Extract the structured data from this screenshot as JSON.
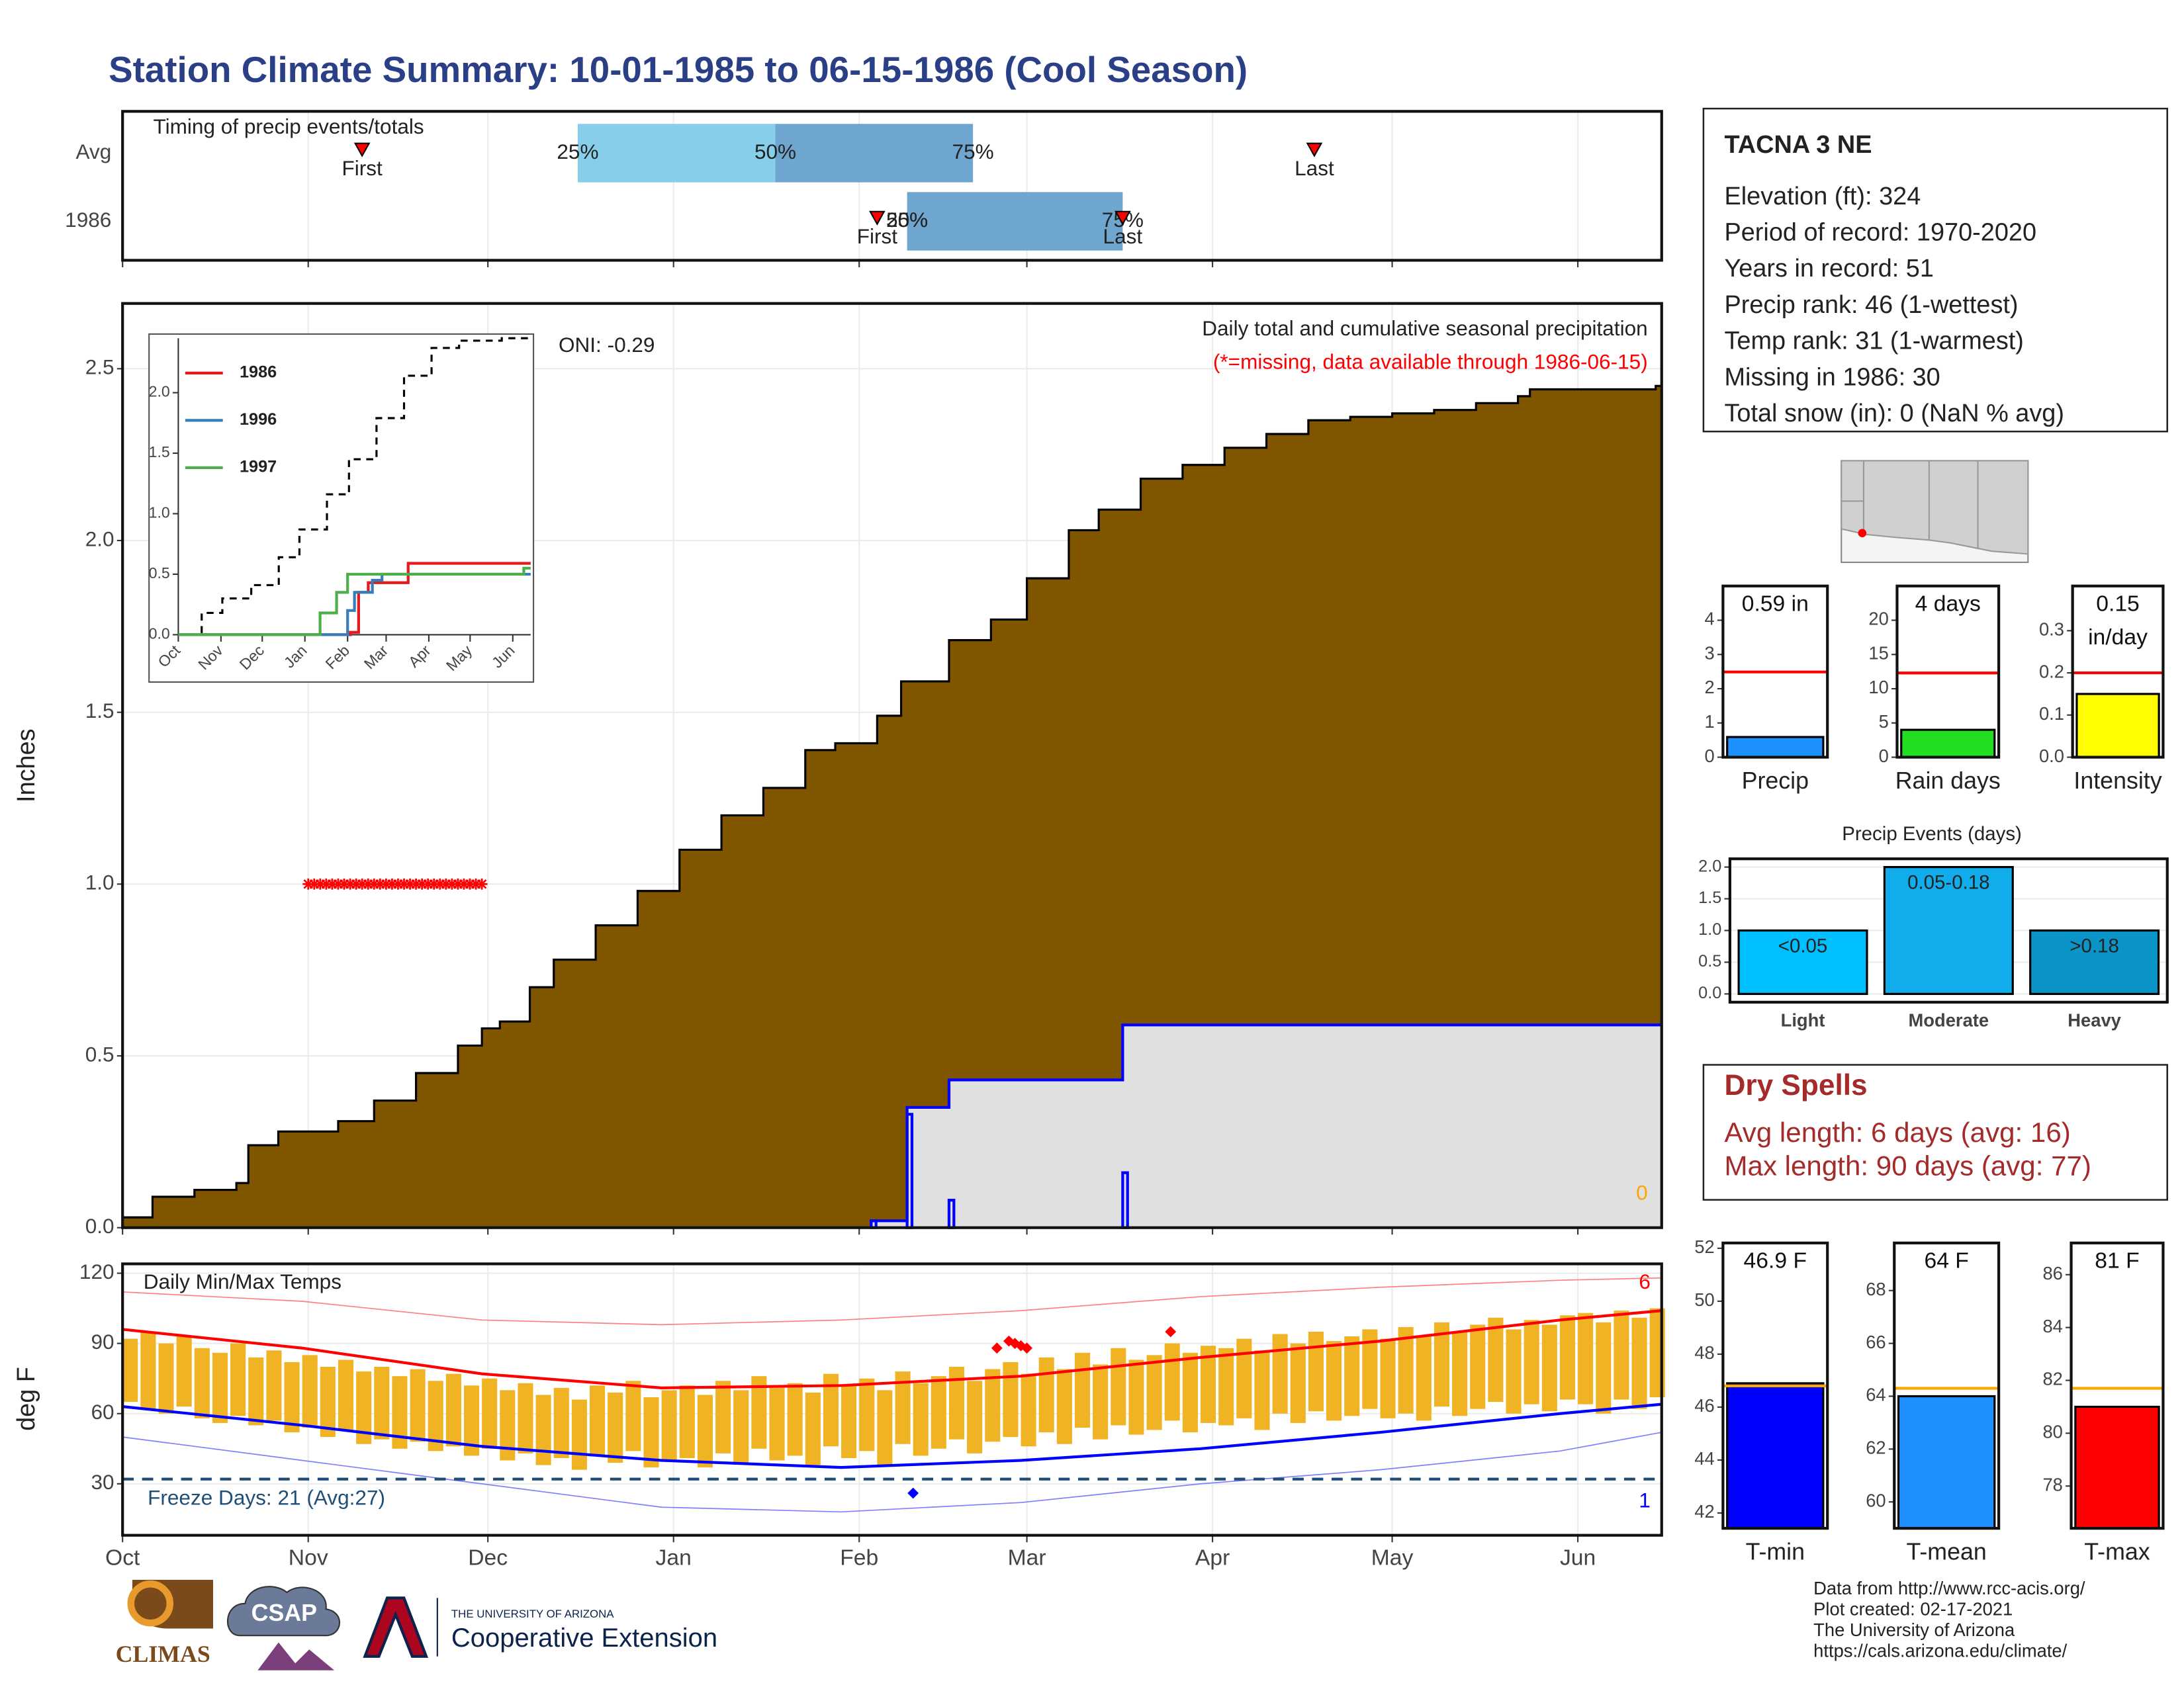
{
  "title": "Station Climate Summary: 10-01-1985 to 06-15-1986 (Cool Season)",
  "station": {
    "name": "TACNA 3 NE",
    "lines": [
      "Elevation (ft): 324",
      "Period of record: 1970-2020",
      "Years in record: 51",
      "Precip rank: 46 (1-wettest)",
      "Temp rank: 31 (1-warmest)",
      "Missing in 1986: 30",
      "Total snow (in): 0 (NaN % avg)"
    ]
  },
  "dry_spells": {
    "title": "Dry Spells",
    "lines": [
      "Avg length: 6 days (avg: 16)",
      "Max length: 90 days (avg: 77)"
    ]
  },
  "footer": [
    "Data from http://www.rcc-acis.org/",
    "Plot created: 02-17-2021",
    "The University of Arizona",
    "https://cals.arizona.edu/climate/"
  ],
  "logos": [
    "CLIMAS",
    "CSAP",
    "THE UNIVERSITY OF ARIZONA",
    "Cooperative Extension"
  ],
  "chart_data": [
    {
      "type": "timing",
      "title": "Timing of precip events/totals",
      "categories": [
        "Avg",
        "1986"
      ],
      "q25": [
        76,
        131
      ],
      "q50": [
        109,
        131
      ],
      "q75": [
        142,
        167
      ],
      "q_labels": [
        "25%",
        "50%",
        "75%"
      ],
      "first": [
        40,
        126
      ],
      "last": [
        199,
        167
      ],
      "first_label": "First",
      "last_label": "Last",
      "colors": [
        "#87ceeb",
        "#6fa6cf"
      ],
      "marker_color": "#ff0000",
      "xlim": [
        0,
        257
      ],
      "xticks": [
        0,
        31,
        61,
        92,
        123,
        151,
        182,
        212,
        243
      ]
    },
    {
      "type": "precip",
      "title": "Daily total and cumulative seasonal precipitation",
      "subtitle": "(*=missing, data available through 1986-06-15)",
      "ylabel": "Inches",
      "annotation": "ONI: -0.29",
      "corner_value": 0,
      "grid": true,
      "xlim": [
        0,
        257
      ],
      "xticks": [
        0,
        31,
        61,
        92,
        123,
        151,
        182,
        212,
        243
      ],
      "ylim": [
        0,
        2.69
      ],
      "yticks": [
        {
          "value": 0,
          "label": "0.0"
        },
        0.5,
        {
          "value": 1,
          "label": "1.0"
        },
        1.5,
        {
          "value": 2,
          "label": "2.0"
        },
        2.5
      ],
      "cumulative_avg": {
        "color": "#7f5500",
        "x": [
          0,
          5,
          12,
          19,
          21,
          26,
          36,
          42,
          49,
          56,
          60,
          63,
          68,
          72,
          79,
          86,
          93,
          100,
          107,
          114,
          119,
          126,
          130,
          138,
          145,
          151,
          158,
          163,
          170,
          177,
          184,
          191,
          198,
          205,
          212,
          219,
          226,
          233,
          235,
          256
        ],
        "values": [
          0.03,
          0.09,
          0.11,
          0.13,
          0.24,
          0.28,
          0.31,
          0.37,
          0.45,
          0.53,
          0.58,
          0.6,
          0.7,
          0.78,
          0.88,
          0.98,
          1.1,
          1.2,
          1.28,
          1.39,
          1.41,
          1.49,
          1.59,
          1.71,
          1.77,
          1.89,
          2.03,
          2.09,
          2.18,
          2.22,
          2.27,
          2.31,
          2.35,
          2.36,
          2.37,
          2.38,
          2.4,
          2.42,
          2.44,
          2.45
        ]
      },
      "cumulative_1986": {
        "color": "#0000ff",
        "fill": "#e0e0e0",
        "x": [
          125,
          131,
          138,
          167
        ],
        "values": [
          0.02,
          0.35,
          0.43,
          0.59
        ]
      },
      "daily_1986": {
        "color": "#0000ff",
        "x": [
          125,
          131,
          138,
          167
        ],
        "values": [
          0.02,
          0.33,
          0.08,
          0.16
        ]
      },
      "missing": {
        "color": "#ff0000",
        "y": 1,
        "x": [
          31,
          32,
          33,
          34,
          35,
          36,
          37,
          38,
          39,
          40,
          41,
          42,
          43,
          44,
          45,
          46,
          47,
          48,
          49,
          50,
          51,
          52,
          53,
          54,
          55,
          56,
          57,
          58,
          59,
          60
        ]
      }
    },
    {
      "type": "line",
      "step": true,
      "xlim": [
        0,
        256
      ],
      "xticks": [
        {
          "value": 0,
          "label": "Oct"
        },
        {
          "value": 31,
          "label": "Nov"
        },
        {
          "value": 61,
          "label": "Dec"
        },
        {
          "value": 92,
          "label": "Jan"
        },
        {
          "value": 123,
          "label": "Feb"
        },
        {
          "value": 151,
          "label": "Mar"
        },
        {
          "value": 182,
          "label": "Apr"
        },
        {
          "value": 212,
          "label": "May"
        },
        {
          "value": 243,
          "label": "Jun"
        }
      ],
      "ylim": [
        0,
        2.45
      ],
      "yticks": [
        {
          "value": 0,
          "label": "0.0"
        },
        0.5,
        {
          "value": 1,
          "label": "1.0"
        },
        1.5,
        {
          "value": 2,
          "label": "2.0"
        }
      ],
      "series": [
        {
          "color": "#000000",
          "dashed": true,
          "x": [
            0,
            17,
            32,
            53,
            73,
            88,
            108,
            124,
            144,
            164,
            184,
            204,
            235,
            255
          ],
          "values": [
            0,
            0.18,
            0.3,
            0.41,
            0.64,
            0.87,
            1.16,
            1.45,
            1.79,
            2.14,
            2.37,
            2.43,
            2.45,
            2.45
          ]
        },
        {
          "name": "1986",
          "color": "#e41a1c",
          "x": [
            0,
            125,
            131,
            138,
            167,
            256
          ],
          "values": [
            0,
            0.02,
            0.35,
            0.43,
            0.59,
            0.59
          ]
        },
        {
          "name": "1996",
          "color": "#377eb8",
          "x": [
            0,
            123,
            128,
            141,
            148,
            256
          ],
          "values": [
            0,
            0.2,
            0.35,
            0.45,
            0.5,
            0.5
          ]
        },
        {
          "name": "1997",
          "color": "#4daf4a",
          "x": [
            0,
            103,
            115,
            123,
            251,
            256
          ],
          "values": [
            0,
            0.18,
            0.35,
            0.5,
            0.55,
            0.55
          ]
        }
      ]
    },
    {
      "type": "temps",
      "title": "Daily Min/Max Temps",
      "ylabel": "deg F",
      "grid": true,
      "freeze": 32,
      "freeze_label": "Freeze Days: 21 (Avg:27)",
      "record_high_count": 6,
      "record_low_count": 1,
      "xlim": [
        0,
        257
      ],
      "xticks": [
        {
          "value": 0,
          "label": "Oct"
        },
        {
          "value": 31,
          "label": "Nov"
        },
        {
          "value": 61,
          "label": "Dec"
        },
        {
          "value": 92,
          "label": "Jan"
        },
        {
          "value": 123,
          "label": "Feb"
        },
        {
          "value": 151,
          "label": "Mar"
        },
        {
          "value": 182,
          "label": "Apr"
        },
        {
          "value": 212,
          "label": "May"
        },
        {
          "value": 243,
          "label": "Jun"
        }
      ],
      "ylim": [
        8,
        124
      ],
      "yticks": [
        30,
        60,
        90,
        120
      ],
      "bars": {
        "color": "#f0b323",
        "x": [
          0,
          3,
          6,
          9,
          12,
          15,
          18,
          21,
          24,
          27,
          30,
          33,
          36,
          39,
          42,
          45,
          48,
          51,
          54,
          57,
          60,
          63,
          66,
          69,
          72,
          75,
          78,
          81,
          84,
          87,
          90,
          93,
          96,
          99,
          102,
          105,
          108,
          111,
          114,
          117,
          120,
          123,
          126,
          129,
          132,
          135,
          138,
          141,
          144,
          147,
          150,
          153,
          156,
          159,
          162,
          165,
          168,
          171,
          174,
          177,
          180,
          183,
          186,
          189,
          192,
          195,
          198,
          201,
          204,
          207,
          210,
          213,
          216,
          219,
          222,
          225,
          228,
          231,
          234,
          237,
          240,
          243,
          246,
          249,
          252,
          255
        ],
        "min": [
          65,
          62,
          60,
          63,
          58,
          56,
          59,
          55,
          57,
          52,
          54,
          50,
          53,
          47,
          49,
          45,
          48,
          44,
          46,
          42,
          45,
          40,
          43,
          38,
          41,
          36,
          42,
          39,
          44,
          37,
          40,
          41,
          37,
          43,
          39,
          45,
          40,
          42,
          38,
          46,
          41,
          44,
          38,
          47,
          42,
          45,
          49,
          43,
          48,
          50,
          46,
          52,
          47,
          54,
          49,
          55,
          51,
          53,
          57,
          52,
          56,
          55,
          58,
          53,
          60,
          56,
          61,
          57,
          59,
          62,
          58,
          60,
          57,
          63,
          59,
          62,
          65,
          60,
          64,
          61,
          66,
          64,
          60,
          66,
          62,
          67
        ],
        "max": [
          92,
          95,
          90,
          93,
          88,
          86,
          90,
          84,
          87,
          82,
          85,
          80,
          83,
          78,
          80,
          76,
          79,
          74,
          77,
          72,
          75,
          70,
          73,
          68,
          71,
          66,
          72,
          69,
          74,
          67,
          70,
          72,
          68,
          74,
          70,
          76,
          71,
          73,
          69,
          77,
          72,
          75,
          70,
          78,
          73,
          76,
          80,
          74,
          79,
          82,
          77,
          84,
          79,
          86,
          81,
          88,
          83,
          85,
          90,
          86,
          89,
          88,
          92,
          87,
          94,
          90,
          95,
          91,
          93,
          96,
          92,
          97,
          93,
          99,
          95,
          98,
          101,
          96,
          100,
          98,
          102,
          103,
          99,
          104,
          101,
          105
        ]
      },
      "lines": [
        {
          "color": "#ff0000",
          "width": 2,
          "x": [
            0,
            30,
            60,
            90,
            120,
            150,
            180,
            210,
            240,
            257
          ],
          "values": [
            96,
            88,
            77,
            71,
            72,
            76,
            84,
            91,
            100,
            104
          ]
        },
        {
          "color": "#0000ff",
          "width": 2,
          "x": [
            0,
            30,
            60,
            90,
            120,
            150,
            180,
            210,
            240,
            257
          ],
          "values": [
            63,
            55,
            46,
            40,
            37,
            40,
            45,
            52,
            60,
            64
          ]
        },
        {
          "color": "#ff8080",
          "width": 0.8,
          "x": [
            0,
            30,
            60,
            90,
            120,
            150,
            180,
            210,
            240,
            257
          ],
          "values": [
            112,
            108,
            100,
            98,
            100,
            104,
            110,
            114,
            117,
            118
          ]
        },
        {
          "color": "#8080ff",
          "width": 0.8,
          "x": [
            0,
            30,
            60,
            90,
            120,
            150,
            180,
            210,
            240,
            257
          ],
          "values": [
            50,
            40,
            30,
            20,
            18,
            22,
            30,
            36,
            44,
            52
          ]
        }
      ],
      "record_highs": {
        "color": "#ff0000",
        "x": [
          146,
          148,
          149,
          150,
          151,
          175
        ],
        "values": [
          88,
          91,
          90,
          89,
          88,
          95
        ]
      },
      "record_lows": {
        "color": "#0000ff",
        "x": [
          132
        ],
        "values": [
          26
        ]
      }
    },
    {
      "type": "bar_avg",
      "xlabel": "Precip",
      "values": [
        0.59
      ],
      "value_labels": [
        "0.59 in"
      ],
      "avg": 2.49,
      "avg_color": "#ff0000",
      "color": "#1e90ff",
      "ylim": [
        0,
        5
      ],
      "yticks": [
        0,
        1,
        2,
        3,
        4
      ]
    },
    {
      "type": "bar_avg",
      "xlabel": "Rain days",
      "values": [
        4
      ],
      "value_labels": [
        "4 days"
      ],
      "avg": 12.3,
      "avg_color": "#ff0000",
      "color": "#22dd22",
      "ylim": [
        0,
        25
      ],
      "yticks": [
        0,
        5,
        10,
        15,
        20
      ]
    },
    {
      "type": "bar_avg",
      "xlabel": "Intensity",
      "values": [
        0.15
      ],
      "value_labels": [
        "0.15 in/day"
      ],
      "avg": 0.2,
      "avg_color": "#ff0000",
      "color": "#ffff00",
      "ylim": [
        0,
        0.406
      ],
      "yticks": [
        {
          "value": 0,
          "label": "0.0"
        },
        0.1,
        0.2,
        0.3
      ]
    },
    {
      "type": "bar_avg",
      "xlabel": "T-min",
      "values": [
        46.9
      ],
      "value_labels": [
        "46.9 F"
      ],
      "avg": 46.8,
      "avg_color": "#ffa500",
      "color": "#0000ff",
      "ylim": [
        41.42,
        52.2
      ],
      "yticks": [
        42,
        44,
        46,
        48,
        50,
        52
      ]
    },
    {
      "type": "bar_avg",
      "xlabel": "T-mean",
      "values": [
        64
      ],
      "value_labels": [
        "64 F"
      ],
      "avg": 64.3,
      "avg_color": "#ffa500",
      "color": "#1e90ff",
      "ylim": [
        59,
        69.8
      ],
      "yticks": [
        60,
        62,
        64,
        66,
        68
      ]
    },
    {
      "type": "bar_avg",
      "xlabel": "T-max",
      "values": [
        81
      ],
      "value_labels": [
        "81 F"
      ],
      "avg": 81.7,
      "avg_color": "#ffa500",
      "color": "#ff0000",
      "ylim": [
        76.4,
        87.2
      ],
      "yticks": [
        78,
        80,
        82,
        84,
        86
      ]
    },
    {
      "type": "bar",
      "title": "Precip Events (days)",
      "categories": [
        "Light",
        "Moderate",
        "Heavy"
      ],
      "values": [
        1,
        2,
        1
      ],
      "bar_labels": [
        "<0.05",
        "0.05-0.18",
        ">0.18"
      ],
      "colors": [
        "#00bfff",
        "#10acec",
        "#0a94c8"
      ],
      "ylim": [
        -0.13,
        2.13
      ],
      "yticks": [
        {
          "value": 0,
          "label": "0.0"
        },
        0.5,
        {
          "value": 1,
          "label": "1.0"
        },
        1.5,
        {
          "value": 2,
          "label": "2.0"
        }
      ]
    }
  ]
}
